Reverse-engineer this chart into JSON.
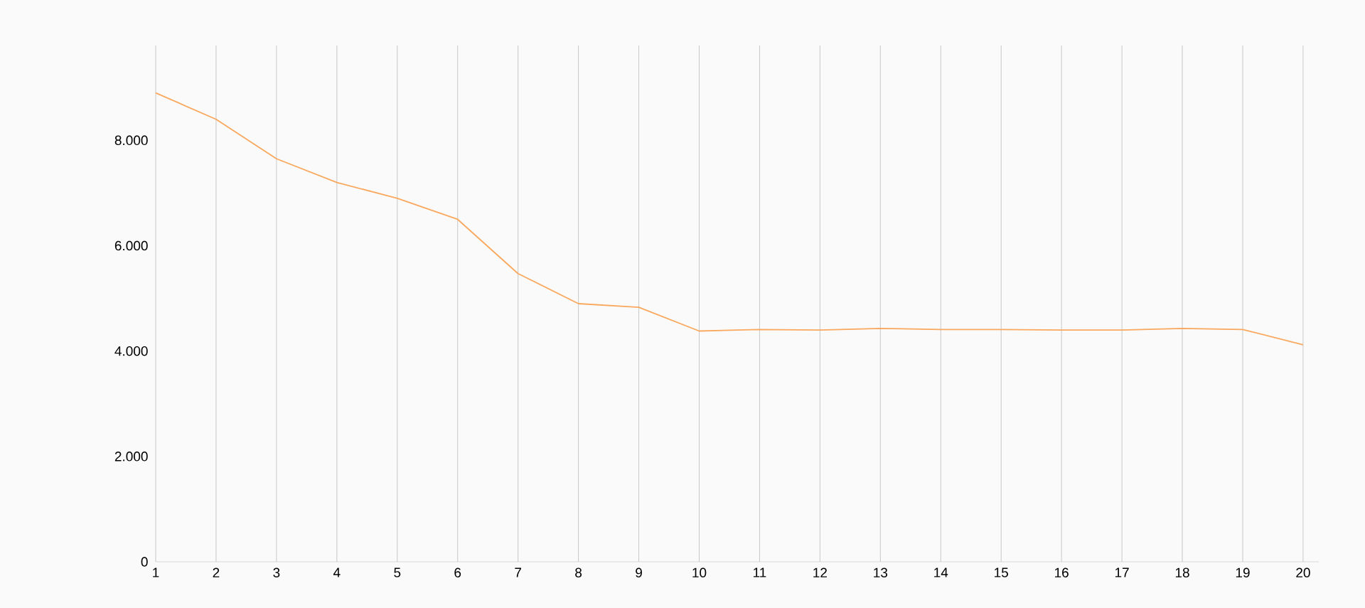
{
  "chart_data": {
    "type": "line",
    "categories": [
      "1",
      "2",
      "3",
      "4",
      "5",
      "6",
      "7",
      "8",
      "9",
      "10",
      "11",
      "12",
      "13",
      "14",
      "15",
      "16",
      "17",
      "18",
      "19",
      "20"
    ],
    "series": [
      {
        "color": "#f9a85e",
        "values": [
          8900,
          8400,
          7650,
          7200,
          6900,
          6500,
          5470,
          4900,
          4830,
          4380,
          4410,
          4400,
          4430,
          4410,
          4410,
          4400,
          4400,
          4430,
          4410,
          4120
        ]
      }
    ],
    "ylim": [
      0,
      9800
    ],
    "yticks": [
      {
        "value": 0,
        "label": "0"
      },
      {
        "value": 2000,
        "label": "2.000"
      },
      {
        "value": 4000,
        "label": "4.000"
      },
      {
        "value": 6000,
        "label": "6.000"
      },
      {
        "value": 8000,
        "label": "8.000"
      }
    ],
    "grid": "x",
    "marker": "none",
    "line_style": "solid"
  }
}
